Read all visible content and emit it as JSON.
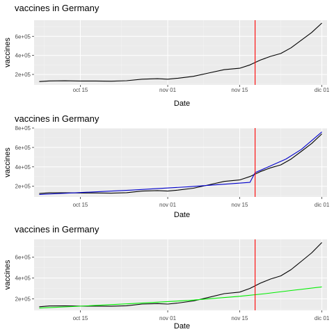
{
  "chart_data": [
    {
      "type": "line",
      "title": "vaccines in Germany",
      "xlabel": "Date",
      "ylabel": "vaccines",
      "x_ticks": [
        "oct 15",
        "nov 01",
        "nov 15",
        "dic 01"
      ],
      "y_ticks": [
        "2e+05",
        "4e+05",
        "6e+05"
      ],
      "xlim": [
        "2020-10-06",
        "2020-12-02"
      ],
      "ylim": [
        90000,
        770000
      ],
      "vline": {
        "x": "2020-11-18",
        "color": "#ff0000"
      },
      "grid": true,
      "series": [
        {
          "color": "#000000",
          "x": [
            "2020-10-07",
            "2020-10-09",
            "2020-10-12",
            "2020-10-15",
            "2020-10-18",
            "2020-10-21",
            "2020-10-24",
            "2020-10-27",
            "2020-10-30",
            "2020-11-01",
            "2020-11-03",
            "2020-11-06",
            "2020-11-09",
            "2020-11-12",
            "2020-11-15",
            "2020-11-17",
            "2020-11-19",
            "2020-11-21",
            "2020-11-23",
            "2020-11-25",
            "2020-11-27",
            "2020-11-29",
            "2020-12-01"
          ],
          "values": [
            125000,
            132000,
            133000,
            131000,
            131000,
            129000,
            134000,
            150000,
            155000,
            150000,
            160000,
            180000,
            215000,
            250000,
            265000,
            300000,
            350000,
            390000,
            420000,
            480000,
            560000,
            640000,
            740000
          ]
        }
      ]
    },
    {
      "type": "line",
      "title": "vaccines in Germany",
      "xlabel": "Date",
      "ylabel": "vaccines",
      "x_ticks": [
        "oct 15",
        "nov 01",
        "nov 15",
        "dic 01"
      ],
      "y_ticks": [
        "2e+05",
        "4e+05",
        "6e+05",
        "8e+05"
      ],
      "xlim": [
        "2020-10-06",
        "2020-12-02"
      ],
      "ylim": [
        90000,
        800000
      ],
      "vline": {
        "x": "2020-11-18",
        "color": "#ff0000"
      },
      "grid": true,
      "series": [
        {
          "color": "#000000",
          "x": [
            "2020-10-07",
            "2020-10-09",
            "2020-10-12",
            "2020-10-15",
            "2020-10-18",
            "2020-10-21",
            "2020-10-24",
            "2020-10-27",
            "2020-10-30",
            "2020-11-01",
            "2020-11-03",
            "2020-11-06",
            "2020-11-09",
            "2020-11-12",
            "2020-11-15",
            "2020-11-17",
            "2020-11-19",
            "2020-11-21",
            "2020-11-23",
            "2020-11-25",
            "2020-11-27",
            "2020-11-29",
            "2020-12-01"
          ],
          "values": [
            125000,
            132000,
            133000,
            131000,
            131000,
            129000,
            134000,
            150000,
            155000,
            150000,
            160000,
            180000,
            215000,
            250000,
            265000,
            300000,
            350000,
            390000,
            420000,
            480000,
            560000,
            640000,
            740000
          ]
        },
        {
          "color": "#0000cc",
          "x": [
            "2020-10-07",
            "2020-10-15",
            "2020-10-25",
            "2020-11-05",
            "2020-11-17",
            "2020-11-18",
            "2020-11-21",
            "2020-11-24",
            "2020-11-27",
            "2020-12-01"
          ],
          "values": [
            115000,
            135000,
            160000,
            195000,
            240000,
            340000,
            410000,
            480000,
            580000,
            760000
          ]
        }
      ]
    },
    {
      "type": "line",
      "title": "vaccines in Germany",
      "xlabel": "Date",
      "ylabel": "vaccines",
      "x_ticks": [
        "oct 15",
        "nov 01",
        "nov 15",
        "dic 01"
      ],
      "y_ticks": [
        "2e+05",
        "4e+05",
        "6e+05"
      ],
      "xlim": [
        "2020-10-06",
        "2020-12-02"
      ],
      "ylim": [
        90000,
        770000
      ],
      "vline": {
        "x": "2020-11-18",
        "color": "#ff0000"
      },
      "grid": true,
      "series": [
        {
          "color": "#000000",
          "x": [
            "2020-10-07",
            "2020-10-09",
            "2020-10-12",
            "2020-10-15",
            "2020-10-18",
            "2020-10-21",
            "2020-10-24",
            "2020-10-27",
            "2020-10-30",
            "2020-11-01",
            "2020-11-03",
            "2020-11-06",
            "2020-11-09",
            "2020-11-12",
            "2020-11-15",
            "2020-11-17",
            "2020-11-19",
            "2020-11-21",
            "2020-11-23",
            "2020-11-25",
            "2020-11-27",
            "2020-11-29",
            "2020-12-01"
          ],
          "values": [
            125000,
            132000,
            133000,
            131000,
            131000,
            129000,
            134000,
            150000,
            155000,
            150000,
            160000,
            180000,
            215000,
            250000,
            265000,
            300000,
            350000,
            390000,
            420000,
            480000,
            560000,
            640000,
            740000
          ]
        },
        {
          "color": "#00ee00",
          "x": [
            "2020-10-07",
            "2020-10-15",
            "2020-10-25",
            "2020-11-05",
            "2020-11-15",
            "2020-11-20",
            "2020-11-25",
            "2020-12-01"
          ],
          "values": [
            112000,
            130000,
            155000,
            185000,
            225000,
            250000,
            280000,
            315000
          ]
        }
      ]
    }
  ]
}
